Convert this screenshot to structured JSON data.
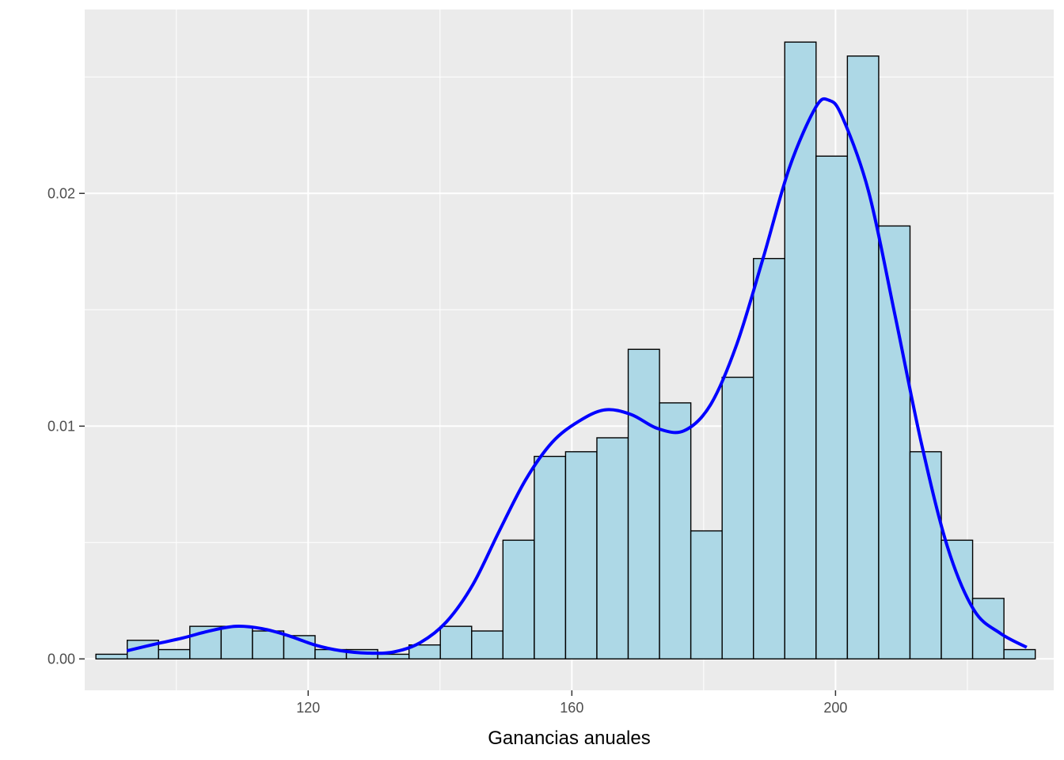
{
  "chart_data": {
    "type": "histogram",
    "xlabel": "Ganancias anuales",
    "ylabel": "",
    "title": "",
    "xlim": [
      86.1,
      233.1
    ],
    "ylim": [
      -0.00135,
      0.0279
    ],
    "x_ticks": [
      120,
      160,
      200
    ],
    "x_tick_labels": [
      "120",
      "160",
      "200"
    ],
    "y_ticks": [
      0.0,
      0.01,
      0.02
    ],
    "y_tick_labels": [
      "0.00",
      "0.01",
      "0.02"
    ],
    "x_minor_ticks": [
      100,
      140,
      180,
      220
    ],
    "y_minor_ticks": [
      0.005,
      0.015,
      0.025
    ],
    "bin_width": 4.75,
    "bins_start": 87.8,
    "density_values": [
      0.0002,
      0.0008,
      0.0004,
      0.0014,
      0.0014,
      0.0012,
      0.001,
      0.0004,
      0.0004,
      0.0002,
      0.0006,
      0.0014,
      0.0012,
      0.0051,
      0.0087,
      0.0089,
      0.0095,
      0.0133,
      0.011,
      0.0055,
      0.0121,
      0.0172,
      0.0265,
      0.0216,
      0.0259,
      0.0186,
      0.0089,
      0.0051,
      0.0026,
      0.0004
    ],
    "density_curve": {
      "x": [
        92.5,
        97,
        101,
        105,
        109,
        113,
        117,
        121,
        125,
        129,
        133,
        137,
        141,
        145,
        149,
        153,
        157,
        161,
        165,
        169,
        173,
        177,
        181,
        185,
        189,
        193,
        197,
        199,
        201,
        205,
        209,
        213,
        217,
        221,
        225,
        229
      ],
      "y": [
        0.00035,
        0.00065,
        0.0009,
        0.0012,
        0.0014,
        0.0013,
        0.001,
        0.0006,
        0.00035,
        0.00025,
        0.0003,
        0.0007,
        0.0016,
        0.0032,
        0.0055,
        0.0077,
        0.0093,
        0.0102,
        0.0107,
        0.0105,
        0.0099,
        0.0098,
        0.0109,
        0.0135,
        0.0172,
        0.0211,
        0.0237,
        0.024,
        0.0233,
        0.0201,
        0.0148,
        0.0093,
        0.0048,
        0.0021,
        0.0011,
        0.0005
      ]
    },
    "colors": {
      "panel_background": "#ebebeb",
      "grid_line": "#ffffff",
      "bar_fill": "#add8e6",
      "bar_outline": "#000000",
      "density_line": "#0000ff"
    },
    "grid": true,
    "legend": "none"
  }
}
